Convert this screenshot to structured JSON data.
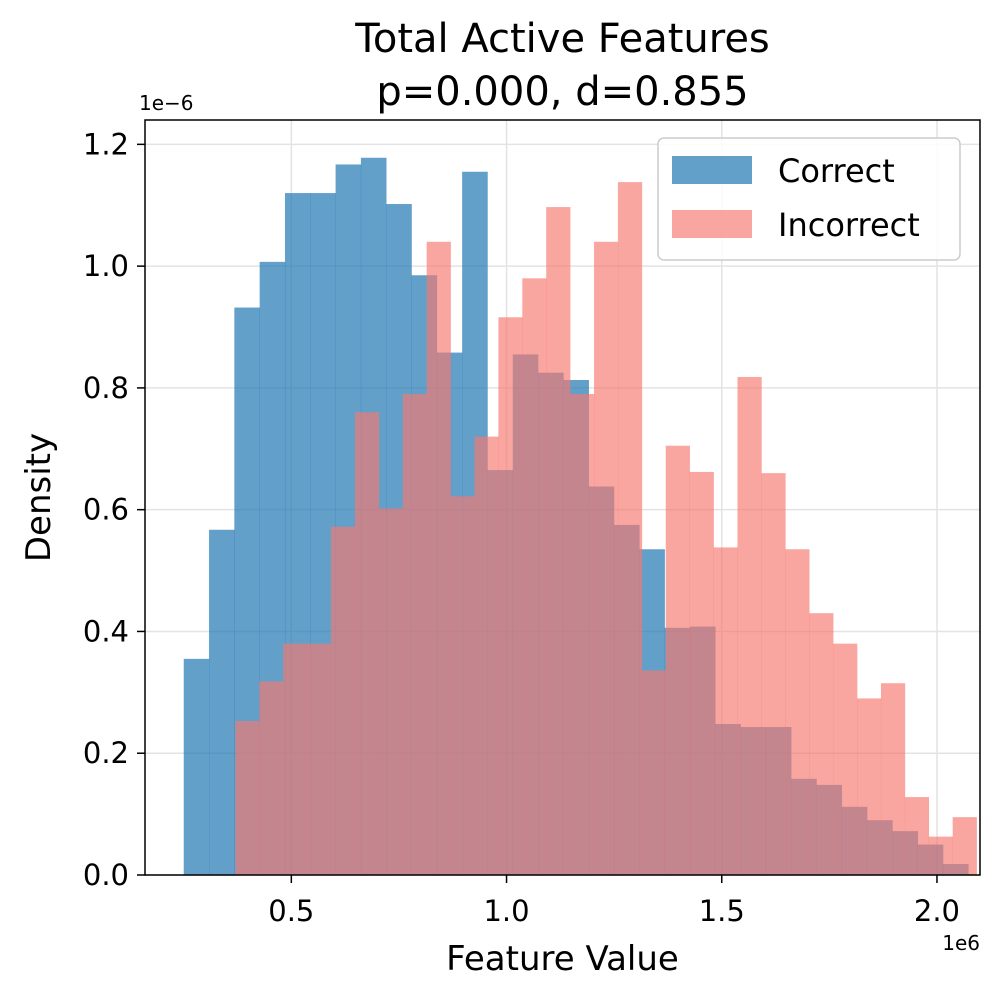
{
  "chart_data": {
    "type": "histogram",
    "title_line1": "Total Active Features",
    "title_line2": "p=0.000, d=0.855",
    "xlabel": "Feature Value",
    "ylabel": "Density",
    "x_offset_label": "1e6",
    "y_offset_label": "1e−6",
    "xlim": [
      0.16,
      2.1
    ],
    "ylim": [
      0,
      1.24
    ],
    "xticks": [
      0.5,
      1.0,
      1.5,
      2.0
    ],
    "xtick_labels": [
      "0.5",
      "1.0",
      "1.5",
      "2.0"
    ],
    "yticks": [
      0.0,
      0.2,
      0.4,
      0.6,
      0.8,
      1.0,
      1.2
    ],
    "ytick_labels": [
      "0.0",
      "0.2",
      "0.4",
      "0.6",
      "0.8",
      "1.0",
      "1.2"
    ],
    "grid": true,
    "legend_position": "top-right",
    "series": [
      {
        "name": "Correct",
        "color": "#1f77b4",
        "opacity": 0.7,
        "bin_start": 0.25,
        "bin_width": 0.0588,
        "values": [
          0.355,
          0.567,
          0.932,
          1.007,
          1.12,
          1.12,
          1.167,
          1.178,
          1.102,
          0.985,
          0.858,
          1.155,
          0.665,
          0.855,
          0.825,
          0.813,
          0.638,
          0.575,
          0.535,
          0.406,
          0.408,
          0.248,
          0.243,
          0.243,
          0.158,
          0.148,
          0.112,
          0.09,
          0.072,
          0.05,
          0.018
        ]
      },
      {
        "name": "Incorrect",
        "color": "#f8766d",
        "opacity": 0.65,
        "bin_start": 0.37,
        "bin_width": 0.05555,
        "values": [
          0.253,
          0.318,
          0.38,
          0.38,
          0.572,
          0.76,
          0.602,
          0.79,
          1.04,
          0.622,
          0.72,
          0.916,
          0.98,
          1.097,
          0.79,
          1.04,
          1.138,
          0.336,
          0.705,
          0.662,
          0.538,
          0.818,
          0.66,
          0.535,
          0.43,
          0.38,
          0.29,
          0.315,
          0.128,
          0.063,
          0.095
        ]
      }
    ]
  }
}
